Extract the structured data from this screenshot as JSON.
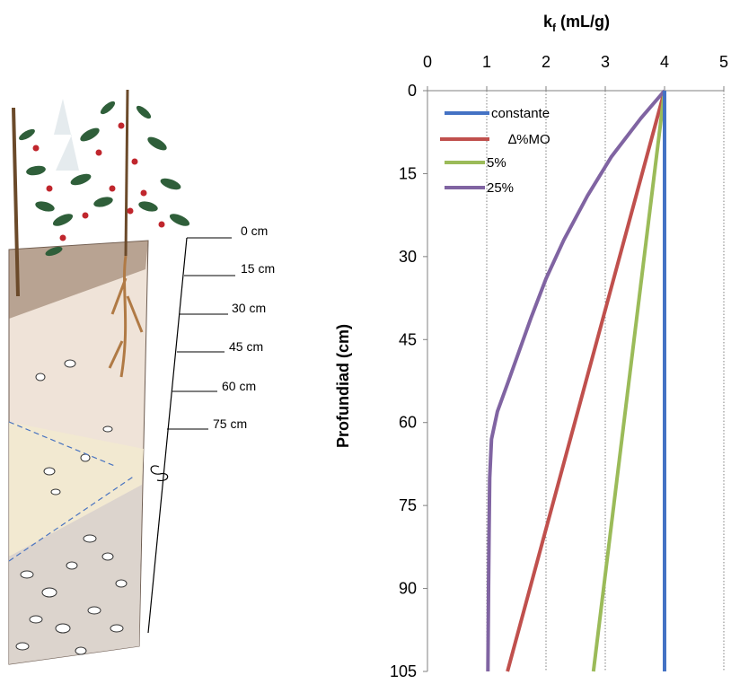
{
  "illustration": {
    "depth_labels": [
      "0 cm",
      "15 cm",
      "30 cm",
      "45 cm",
      "60 cm",
      "75 cm"
    ]
  },
  "chart_data": {
    "type": "line",
    "title": "",
    "xlabel": "k",
    "xlabel_sub": "f",
    "xlabel_rest": " (mL/g)",
    "ylabel": "Profundiad (cm)",
    "xlim": [
      0,
      5
    ],
    "ylim": [
      0,
      105
    ],
    "y_inverted": true,
    "x_axis_position": "top",
    "x_ticks": [
      0,
      1,
      2,
      3,
      4,
      5
    ],
    "y_ticks": [
      0,
      15,
      30,
      45,
      60,
      75,
      90,
      105
    ],
    "grid": "vertical dotted",
    "legend_position": "top-left",
    "series": [
      {
        "name": "constante",
        "color": "#4472C4",
        "points": [
          [
            4,
            0
          ],
          [
            4,
            105
          ]
        ]
      },
      {
        "name": "∆%MO",
        "color": "#C0504D",
        "points": [
          [
            4,
            0
          ],
          [
            1.35,
            105
          ]
        ]
      },
      {
        "name": "5%",
        "color": "#9BBB59",
        "points": [
          [
            4,
            0
          ],
          [
            2.8,
            105
          ]
        ]
      },
      {
        "name": "25%",
        "color": "#8064A2",
        "points": [
          [
            4,
            0
          ],
          [
            3.6,
            5
          ],
          [
            3.1,
            12
          ],
          [
            2.7,
            19
          ],
          [
            2.3,
            27
          ],
          [
            2.0,
            34
          ],
          [
            1.75,
            41
          ],
          [
            1.55,
            47
          ],
          [
            1.35,
            53
          ],
          [
            1.18,
            58
          ],
          [
            1.08,
            63
          ],
          [
            1.05,
            70
          ],
          [
            1.04,
            80
          ],
          [
            1.03,
            90
          ],
          [
            1.02,
            105
          ]
        ]
      }
    ]
  }
}
